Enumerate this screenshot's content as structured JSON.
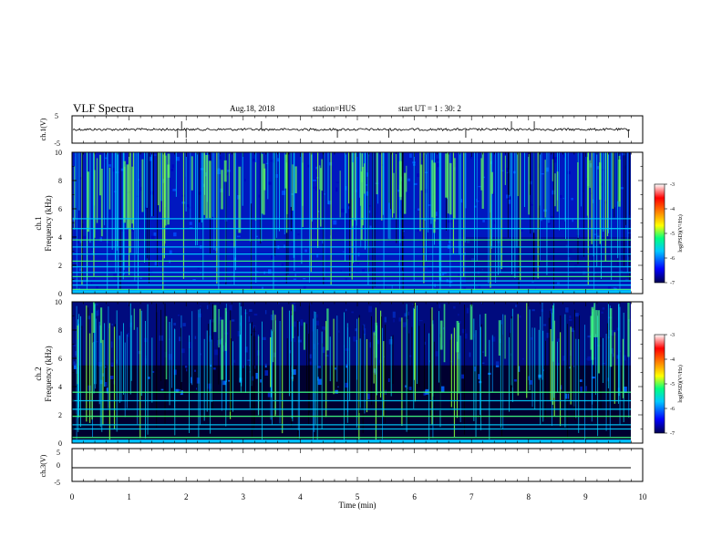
{
  "header": {
    "title": "VLF Spectra",
    "date": "Aug.18, 2018",
    "station": "station=HUS",
    "start_ut": "start UT =  1 : 30: 2"
  },
  "colors": {
    "background": "#ffffff",
    "axes": "#000000",
    "colormap": [
      "#000060",
      "#0000ff",
      "#00c8ff",
      "#00ff80",
      "#ffff00",
      "#ff8000",
      "#ff0000",
      "#ffffff"
    ]
  },
  "chart_data": [
    {
      "type": "line",
      "id": "ch1_waveform",
      "ylabel": "ch.1(V)",
      "ylim": [
        -5,
        5
      ],
      "y_ticks": [
        "5",
        "-5"
      ],
      "xlim": [
        0,
        10
      ],
      "note": "noisy waveform near 0 V with sparse spikes",
      "x_spikes_min": [
        1.85,
        1.92,
        2.0,
        3.32,
        4.65,
        5.55,
        6.9,
        7.7,
        8.1,
        9.75
      ]
    },
    {
      "type": "heatmap",
      "id": "ch1_spectrogram",
      "ylabel_line1": "ch.1",
      "ylabel_line2": "Frequency (kHz)",
      "ylim": [
        0,
        10
      ],
      "y_ticks": [
        "0",
        "2",
        "4",
        "6",
        "8",
        "10"
      ],
      "xlim": [
        0,
        9.8
      ],
      "colorbar": {
        "label": "log(PSD)(V²/Hz)",
        "ticks": [
          "-3",
          "-4",
          "-5",
          "-6",
          "-7"
        ],
        "range": [
          -7,
          -3
        ]
      },
      "horizontal_lines_khz": [
        0.3,
        0.6,
        0.9,
        1.2,
        1.5,
        1.9,
        2.3,
        2.8,
        3.3,
        3.8,
        4.6,
        5.3
      ]
    },
    {
      "type": "heatmap",
      "id": "ch2_spectrogram",
      "ylabel_line1": "ch.2",
      "ylabel_line2": "Frequency (kHz)",
      "ylim": [
        0,
        10
      ],
      "y_ticks": [
        "0",
        "2",
        "4",
        "6",
        "8",
        "10"
      ],
      "xlim": [
        0,
        9.8
      ],
      "colorbar": {
        "label": "log(PSD)(V²/Hz)",
        "ticks": [
          "-3",
          "-4",
          "-5",
          "-6",
          "-7"
        ],
        "range": [
          -7,
          -3
        ]
      },
      "horizontal_lines_khz": [
        0.4,
        1.0,
        1.3,
        1.9,
        2.4,
        3.0,
        3.6
      ]
    },
    {
      "type": "line",
      "id": "ch3_waveform",
      "ylabel": "ch.3(V)",
      "ylim": [
        -5,
        5
      ],
      "y_ticks": [
        "5",
        "0",
        "-5"
      ],
      "xlim": [
        0,
        10
      ],
      "constant_value_v": -1.2,
      "xlabel": "Time (min)",
      "x_ticks": [
        "0",
        "1",
        "2",
        "3",
        "4",
        "5",
        "6",
        "7",
        "8",
        "9",
        "10"
      ]
    }
  ]
}
